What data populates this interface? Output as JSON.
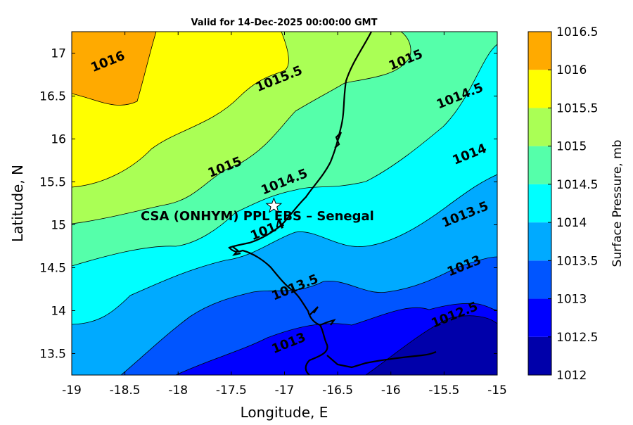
{
  "title": "Valid for 14-Dec-2025 00:00:00 GMT",
  "xlabel": "Longitude, E",
  "ylabel": "Latitude, N",
  "colorbar_label": "Surface Pressure, mb",
  "site_label": "CSA (ONHYM) PPL EBS  – Senegal",
  "site_marker_icon": "star-icon",
  "chart_data": {
    "type": "heatmap",
    "title": "Valid for 14-Dec-2025 00:00:00 GMT",
    "x_range": [
      -19,
      -15
    ],
    "y_range": [
      13.25,
      17.25
    ],
    "x_ticks": [
      "-19",
      "-18.5",
      "-18",
      "-17.5",
      "-17",
      "-16.5",
      "-16",
      "-15.5",
      "-15"
    ],
    "y_ticks": [
      "13.5",
      "14",
      "14.5",
      "15",
      "15.5",
      "16",
      "16.5",
      "17"
    ],
    "site": {
      "lon": -17.1,
      "lat": 15.22
    },
    "colorbar": {
      "levels": [
        1012,
        1012.5,
        1013,
        1013.5,
        1014,
        1014.5,
        1015,
        1015.5,
        1016,
        1016.5
      ],
      "tick_labels": [
        "1012",
        "1012.5",
        "1013",
        "1013.5",
        "1014",
        "1014.5",
        "1015",
        "1015.5",
        "1016",
        "1016.5"
      ],
      "colors": [
        "#0000aa",
        "#0000ff",
        "#0055ff",
        "#00aaff",
        "#00ffff",
        "#55ffaa",
        "#aaff55",
        "#ffff00",
        "#ffaa00",
        "#ff5500"
      ]
    },
    "contour_labels": [
      {
        "text": "1016",
        "lon": -18.8,
        "lat": 16.78
      },
      {
        "text": "1015.5",
        "lon": -17.25,
        "lat": 16.55
      },
      {
        "text": "1015",
        "lon": -16.0,
        "lat": 16.8
      },
      {
        "text": "1014.5",
        "lon": -15.55,
        "lat": 16.35
      },
      {
        "text": "1014",
        "lon": -15.4,
        "lat": 15.7
      },
      {
        "text": "1015",
        "lon": -17.7,
        "lat": 15.55
      },
      {
        "text": "1014.5",
        "lon": -17.2,
        "lat": 15.35
      },
      {
        "text": "1014",
        "lon": -17.3,
        "lat": 14.82
      },
      {
        "text": "1013.5",
        "lon": -15.5,
        "lat": 14.97
      },
      {
        "text": "1013.5",
        "lon": -17.1,
        "lat": 14.12
      },
      {
        "text": "1013",
        "lon": -15.45,
        "lat": 14.4
      },
      {
        "text": "1013",
        "lon": -17.1,
        "lat": 13.5
      },
      {
        "text": "1012.5",
        "lon": -15.6,
        "lat": 13.8
      }
    ]
  }
}
